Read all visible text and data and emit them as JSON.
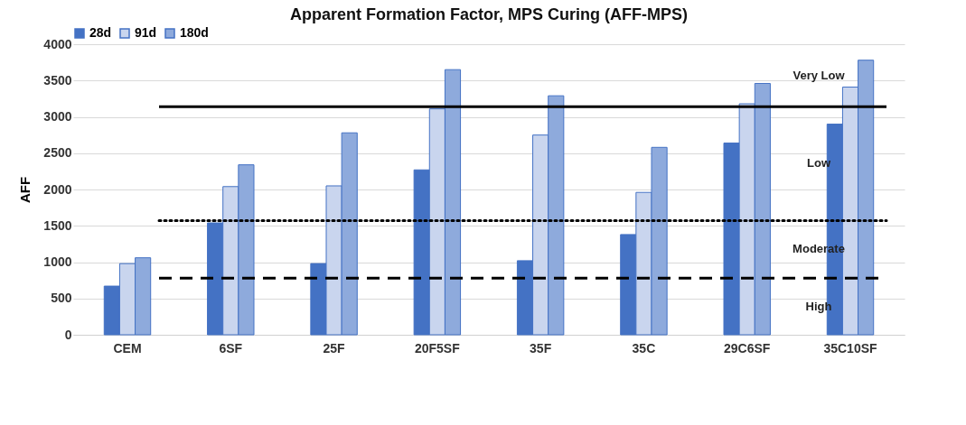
{
  "chart_data": {
    "type": "bar",
    "title": "Apparent Formation Factor, MPS Curing (AFF-MPS)",
    "ylabel": "AFF",
    "categories": [
      "CEM",
      "6SF",
      "25F",
      "20F5SF",
      "35F",
      "35C",
      "29C6SF",
      "35C10SF"
    ],
    "series": [
      {
        "name": "28d",
        "color": "#4472c4",
        "values": [
          670,
          1540,
          980,
          2270,
          1020,
          1380,
          2640,
          2900
        ]
      },
      {
        "name": "91d",
        "color": "#c9d5ee",
        "values": [
          980,
          2040,
          2050,
          3110,
          2750,
          1960,
          3180,
          3410
        ]
      },
      {
        "name": "180d",
        "color": "#8eaadc",
        "values": [
          1060,
          2340,
          2780,
          3650,
          3290,
          2580,
          3460,
          3780
        ]
      }
    ],
    "ylim": [
      0,
      4000
    ],
    "yticks": [
      0,
      500,
      1000,
      1500,
      2000,
      2500,
      3000,
      3500,
      4000
    ],
    "grid": "y",
    "legend": "top",
    "ref_lines": [
      {
        "axis": "y",
        "value": 3140,
        "line_style": "solid",
        "color": "#000000"
      },
      {
        "axis": "y",
        "value": 1570,
        "line_style": "dotted",
        "color": "#000000"
      },
      {
        "axis": "y",
        "value": 780,
        "line_style": "dashed",
        "color": "#000000"
      }
    ],
    "annotations": [
      "Very Low",
      "Low",
      "Moderate",
      "High"
    ]
  }
}
